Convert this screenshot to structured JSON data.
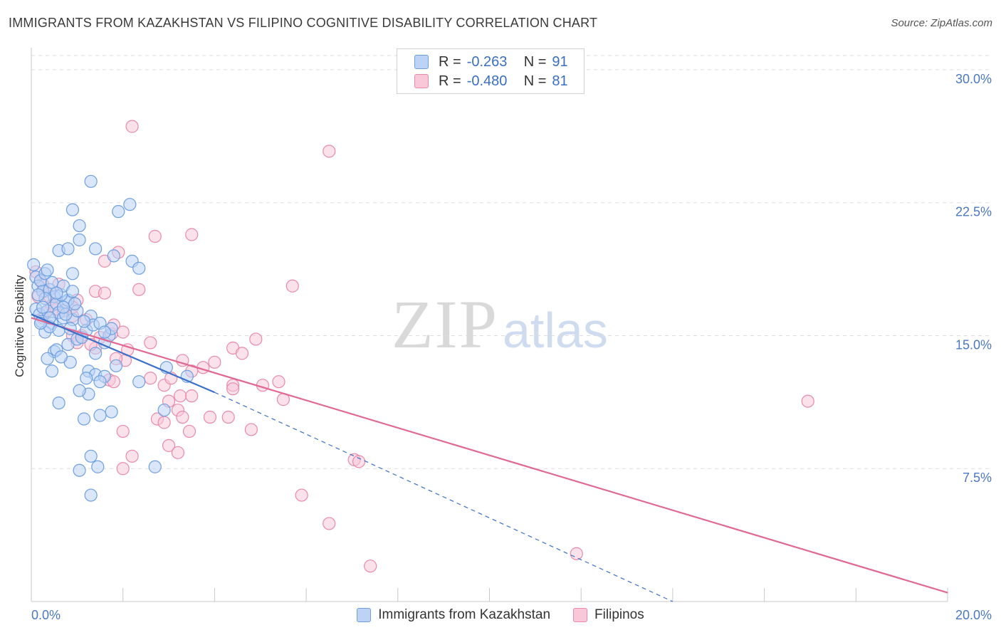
{
  "title": "IMMIGRANTS FROM KAZAKHSTAN VS FILIPINO COGNITIVE DISABILITY CORRELATION CHART",
  "source": "Source: ZipAtlas.com",
  "watermark": {
    "part1": "ZIP",
    "part2": "atlas"
  },
  "colors": {
    "blue_fill": "#bcd3f5",
    "blue_stroke": "#6e9fe0",
    "blue_line": "#3a70c9",
    "pink_fill": "#f8c8d8",
    "pink_stroke": "#e88aaa",
    "pink_line": "#e06892",
    "tick_text": "#4a78c2",
    "grid": "#dddddd"
  },
  "stats": {
    "rows": [
      {
        "key": "R =",
        "r": "-0.263",
        "nkey": "N =",
        "n": "91"
      },
      {
        "key": "R =",
        "r": "-0.480",
        "nkey": "N =",
        "n": "81"
      }
    ]
  },
  "legend": {
    "series1": "Immigrants from Kazakhstan",
    "series2": "Filipinos"
  },
  "chart_data": {
    "type": "scatter",
    "title": "IMMIGRANTS FROM KAZAKHSTAN VS FILIPINO COGNITIVE DISABILITY CORRELATION CHART",
    "xlabel": "",
    "ylabel": "Cognitive Disability",
    "xlim": [
      0,
      20
    ],
    "ylim": [
      0,
      30.8
    ],
    "x_tick_labels": [
      "0.0%",
      "20.0%"
    ],
    "y_ticks": [
      {
        "value": 7.5,
        "label": "7.5%"
      },
      {
        "value": 15.0,
        "label": "15.0%"
      },
      {
        "value": 22.5,
        "label": "22.5%"
      },
      {
        "value": 30.0,
        "label": "30.0%"
      }
    ],
    "grid": true,
    "legend_position": "bottom-center",
    "series": [
      {
        "name": "Immigrants from Kazakhstan",
        "R": -0.263,
        "N": 91,
        "trend": {
          "x0": 0,
          "y0": 16.2,
          "x1": 4.0,
          "y1": 11.8,
          "dashed_to_x": 14.0,
          "dashed_to_y": 0
        },
        "points": [
          [
            0.05,
            19.0
          ],
          [
            0.1,
            18.3
          ],
          [
            0.15,
            17.8
          ],
          [
            0.2,
            18.1
          ],
          [
            0.25,
            17.5
          ],
          [
            0.3,
            18.5
          ],
          [
            0.1,
            16.5
          ],
          [
            0.18,
            16.2
          ],
          [
            0.22,
            15.8
          ],
          [
            0.35,
            16.4
          ],
          [
            0.4,
            17.6
          ],
          [
            0.5,
            17.2
          ],
          [
            0.55,
            16.8
          ],
          [
            0.6,
            16.3
          ],
          [
            0.45,
            15.7
          ],
          [
            0.3,
            15.2
          ],
          [
            0.4,
            15.5
          ],
          [
            0.6,
            15.3
          ],
          [
            0.7,
            16.0
          ],
          [
            0.75,
            16.9
          ],
          [
            0.8,
            17.0
          ],
          [
            0.9,
            15.9
          ],
          [
            0.85,
            15.4
          ],
          [
            1.0,
            16.4
          ],
          [
            0.5,
            14.1
          ],
          [
            0.35,
            13.7
          ],
          [
            0.55,
            14.2
          ],
          [
            0.45,
            13.0
          ],
          [
            0.8,
            14.5
          ],
          [
            0.85,
            13.5
          ],
          [
            1.0,
            14.8
          ],
          [
            1.1,
            14.9
          ],
          [
            1.2,
            15.3
          ],
          [
            1.3,
            16.1
          ],
          [
            1.35,
            15.6
          ],
          [
            1.4,
            14.0
          ],
          [
            1.5,
            15.7
          ],
          [
            1.6,
            14.6
          ],
          [
            1.7,
            15.0
          ],
          [
            1.75,
            15.4
          ],
          [
            0.6,
            19.8
          ],
          [
            0.8,
            19.9
          ],
          [
            0.9,
            18.5
          ],
          [
            1.05,
            20.4
          ],
          [
            1.05,
            21.2
          ],
          [
            0.9,
            22.1
          ],
          [
            1.3,
            23.7
          ],
          [
            1.4,
            19.9
          ],
          [
            1.8,
            19.5
          ],
          [
            1.9,
            22.0
          ],
          [
            2.15,
            22.4
          ],
          [
            2.2,
            19.2
          ],
          [
            2.35,
            18.8
          ],
          [
            0.65,
            17.3
          ],
          [
            0.7,
            17.8
          ],
          [
            0.75,
            16.2
          ],
          [
            1.15,
            15.8
          ],
          [
            1.25,
            13.0
          ],
          [
            1.4,
            12.8
          ],
          [
            1.2,
            12.6
          ],
          [
            1.6,
            12.7
          ],
          [
            1.5,
            12.4
          ],
          [
            1.25,
            11.7
          ],
          [
            1.05,
            11.9
          ],
          [
            0.6,
            11.2
          ],
          [
            1.15,
            10.3
          ],
          [
            1.5,
            10.5
          ],
          [
            1.75,
            10.7
          ],
          [
            2.35,
            12.4
          ],
          [
            2.95,
            13.2
          ],
          [
            3.4,
            12.7
          ],
          [
            2.9,
            10.8
          ],
          [
            1.3,
            8.2
          ],
          [
            1.05,
            7.4
          ],
          [
            1.45,
            7.6
          ],
          [
            2.7,
            7.6
          ],
          [
            1.3,
            6.0
          ],
          [
            0.3,
            17.1
          ],
          [
            0.25,
            16.6
          ],
          [
            0.4,
            16.0
          ],
          [
            0.7,
            16.6
          ],
          [
            0.95,
            16.8
          ],
          [
            1.6,
            15.2
          ],
          [
            0.2,
            15.7
          ],
          [
            0.45,
            18.0
          ],
          [
            0.55,
            17.4
          ],
          [
            0.9,
            17.5
          ],
          [
            0.35,
            18.7
          ],
          [
            0.15,
            17.3
          ],
          [
            1.85,
            13.3
          ],
          [
            0.65,
            13.8
          ]
        ]
      },
      {
        "name": "Filipinos",
        "R": -0.48,
        "N": 81,
        "trend": {
          "x0": 0,
          "y0": 16.0,
          "x1": 20.0,
          "y1": 0.5
        },
        "points": [
          [
            0.1,
            18.6
          ],
          [
            0.2,
            18.1
          ],
          [
            0.3,
            17.5
          ],
          [
            0.15,
            17.2
          ],
          [
            0.25,
            17.9
          ],
          [
            0.4,
            17.2
          ],
          [
            0.5,
            16.8
          ],
          [
            0.6,
            16.3
          ],
          [
            0.3,
            16.3
          ],
          [
            0.55,
            16.5
          ],
          [
            0.7,
            16.4
          ],
          [
            0.9,
            16.1
          ],
          [
            0.6,
            17.9
          ],
          [
            1.0,
            17.0
          ],
          [
            1.1,
            15.0
          ],
          [
            1.2,
            15.9
          ],
          [
            1.4,
            14.3
          ],
          [
            0.9,
            15.0
          ],
          [
            1.0,
            14.6
          ],
          [
            1.3,
            14.5
          ],
          [
            1.5,
            14.9
          ],
          [
            1.75,
            15.1
          ],
          [
            1.8,
            15.6
          ],
          [
            2.0,
            15.2
          ],
          [
            1.4,
            17.5
          ],
          [
            1.6,
            17.4
          ],
          [
            1.6,
            19.2
          ],
          [
            1.9,
            19.7
          ],
          [
            2.35,
            17.6
          ],
          [
            2.7,
            20.6
          ],
          [
            3.5,
            20.7
          ],
          [
            2.2,
            26.8
          ],
          [
            6.5,
            25.4
          ],
          [
            5.7,
            17.8
          ],
          [
            2.1,
            14.2
          ],
          [
            2.6,
            14.6
          ],
          [
            2.05,
            13.6
          ],
          [
            2.6,
            12.6
          ],
          [
            2.9,
            12.2
          ],
          [
            3.05,
            12.6
          ],
          [
            3.3,
            13.6
          ],
          [
            3.75,
            13.2
          ],
          [
            3.5,
            13.0
          ],
          [
            4.0,
            13.5
          ],
          [
            4.4,
            14.3
          ],
          [
            4.6,
            14.0
          ],
          [
            4.9,
            14.8
          ],
          [
            4.4,
            12.2
          ],
          [
            4.4,
            12.0
          ],
          [
            5.05,
            12.2
          ],
          [
            5.4,
            12.4
          ],
          [
            5.5,
            11.4
          ],
          [
            1.7,
            12.5
          ],
          [
            1.8,
            12.4
          ],
          [
            1.85,
            13.7
          ],
          [
            3.0,
            11.3
          ],
          [
            3.25,
            11.6
          ],
          [
            3.5,
            11.6
          ],
          [
            2.75,
            10.3
          ],
          [
            2.9,
            10.1
          ],
          [
            3.2,
            10.8
          ],
          [
            3.3,
            10.4
          ],
          [
            3.45,
            9.6
          ],
          [
            3.9,
            10.4
          ],
          [
            4.3,
            10.4
          ],
          [
            4.8,
            9.7
          ],
          [
            2.0,
            9.6
          ],
          [
            2.2,
            8.2
          ],
          [
            3.0,
            8.8
          ],
          [
            3.2,
            8.4
          ],
          [
            2.0,
            7.5
          ],
          [
            7.05,
            8.0
          ],
          [
            7.15,
            7.9
          ],
          [
            5.9,
            6.0
          ],
          [
            6.5,
            4.4
          ],
          [
            11.9,
            2.7
          ],
          [
            7.4,
            2.0
          ],
          [
            16.95,
            11.3
          ],
          [
            0.9,
            16.6
          ],
          [
            0.45,
            16.7
          ],
          [
            0.25,
            16.0
          ]
        ]
      }
    ]
  }
}
